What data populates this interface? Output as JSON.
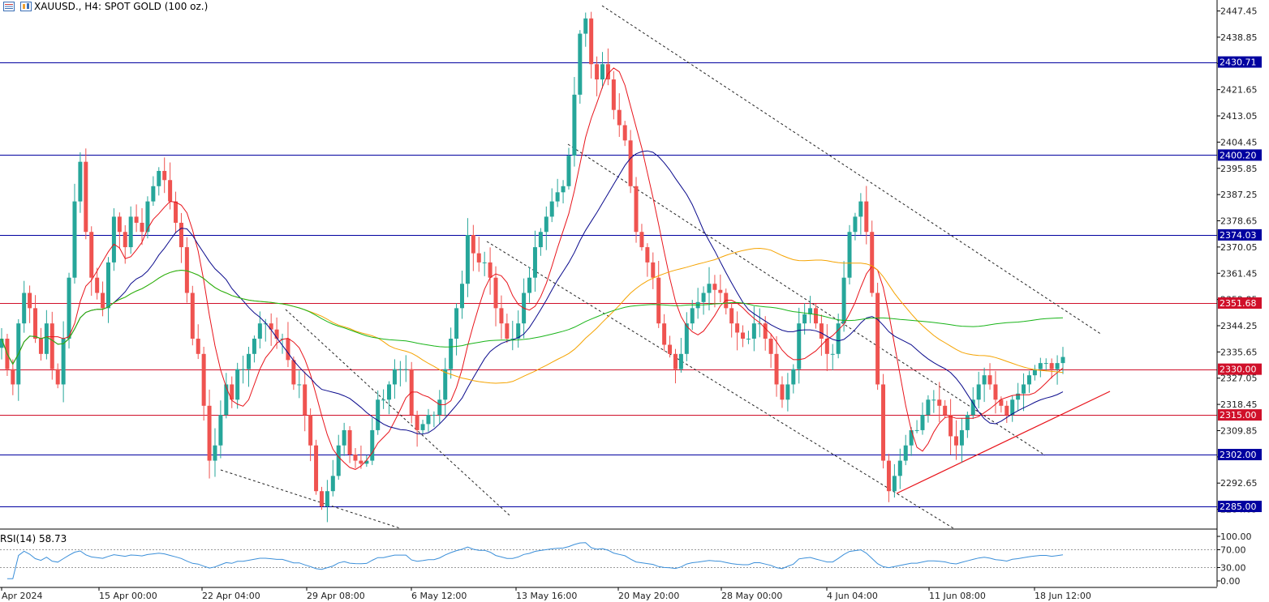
{
  "header": {
    "symbol_text": "XAUUSD., H4:  SPOT GOLD (100 oz.)",
    "icons": [
      "list-icon",
      "chart-type-icon"
    ]
  },
  "colors": {
    "bull": "#26a69a",
    "bear": "#ef5350",
    "ma_red": "#e8141b",
    "ma_navy": "#0a0a8c",
    "ma_orange": "#f5a300",
    "ma_green": "#19b419",
    "level_blue": "#0000a0",
    "level_red": "#d0102a",
    "rsi_line": "#3b8fd9",
    "trend_red": "#e8141b"
  },
  "chart_data": [
    {
      "type": "candlestick",
      "title": "XAUUSD., H4:  SPOT GOLD (100 oz.)",
      "y_range": [
        2280.1,
        2450.0
      ],
      "y_ticks": [
        "2447.45",
        "2438.85",
        "2430.25",
        "2421.65",
        "2413.05",
        "2404.45",
        "2395.85",
        "2387.25",
        "2378.65",
        "2370.05",
        "2361.45",
        "2352.85",
        "2344.25",
        "2335.65",
        "2327.05",
        "2318.45",
        "2309.85",
        "2301.25",
        "2292.65",
        "2284.05"
      ],
      "x_labels": [
        "Apr 2024",
        "15 Apr 00:00",
        "22 Apr 04:00",
        "29 Apr 08:00",
        "6 May 12:00",
        "13 May 16:00",
        "20 May 20:00",
        "28 May 00:00",
        "4 Jun 04:00",
        "11 Jun 08:00",
        "18 Jun 12:00"
      ],
      "price_levels": [
        {
          "label": "2430.71",
          "value": 2430.71,
          "tone": "blue"
        },
        {
          "label": "2400.20",
          "value": 2400.2,
          "tone": "blue"
        },
        {
          "label": "2374.03",
          "value": 2374.03,
          "tone": "blue"
        },
        {
          "label": "2351.68",
          "value": 2351.68,
          "tone": "red"
        },
        {
          "label": "2330.00",
          "value": 2330.0,
          "tone": "red"
        },
        {
          "label": "2315.00",
          "value": 2315.0,
          "tone": "red"
        },
        {
          "label": "2302.00",
          "value": 2302.0,
          "tone": "blue"
        },
        {
          "label": "2285.00",
          "value": 2285.0,
          "tone": "blue"
        }
      ],
      "closes": [
        2340,
        2330,
        2325,
        2345,
        2355,
        2350,
        2340,
        2335,
        2345,
        2330,
        2325,
        2340,
        2360,
        2385,
        2398,
        2375,
        2360,
        2355,
        2350,
        2365,
        2380,
        2375,
        2370,
        2380,
        2378,
        2375,
        2385,
        2390,
        2395,
        2392,
        2385,
        2378,
        2370,
        2355,
        2340,
        2335,
        2318,
        2300,
        2305,
        2315,
        2325,
        2320,
        2330,
        2330,
        2335,
        2340,
        2345,
        2345,
        2343,
        2340,
        2340,
        2333,
        2325,
        2325,
        2315,
        2305,
        2290,
        2285,
        2290,
        2295,
        2305,
        2310,
        2302,
        2300,
        2299,
        2300,
        2310,
        2320,
        2320,
        2325,
        2330,
        2330,
        2330,
        2315,
        2310,
        2312,
        2315,
        2315,
        2320,
        2330,
        2340,
        2350,
        2358,
        2374,
        2368,
        2365,
        2365,
        2360,
        2350,
        2345,
        2340,
        2340,
        2345,
        2355,
        2360,
        2370,
        2375,
        2380,
        2385,
        2388,
        2390,
        2400,
        2420,
        2440,
        2445,
        2430,
        2425,
        2430,
        2425,
        2415,
        2410,
        2405,
        2390,
        2375,
        2370,
        2365,
        2360,
        2345,
        2338,
        2335,
        2330,
        2335,
        2345,
        2350,
        2352,
        2355,
        2358,
        2356,
        2355,
        2350,
        2345,
        2342,
        2340,
        2340,
        2345,
        2345,
        2340,
        2335,
        2325,
        2320,
        2325,
        2330,
        2345,
        2348,
        2350,
        2345,
        2340,
        2335,
        2335,
        2345,
        2360,
        2375,
        2380,
        2385,
        2375,
        2355,
        2325,
        2300,
        2290,
        2295,
        2300,
        2305,
        2310,
        2310,
        2315,
        2320,
        2320,
        2318,
        2315,
        2308,
        2305,
        2310,
        2315,
        2320,
        2325,
        2328,
        2325,
        2320,
        2318,
        2315,
        2320,
        2322,
        2325,
        2328,
        2330,
        2332,
        2332,
        2330,
        2332,
        2334
      ],
      "moving_averages": [
        {
          "color_key": "ma_red",
          "period": 8
        },
        {
          "color_key": "ma_navy",
          "period": 21
        },
        {
          "color_key": "ma_orange",
          "period": 55
        },
        {
          "color_key": "ma_green",
          "period": 120
        }
      ]
    },
    {
      "type": "line",
      "title": "RSI(14) 58.73",
      "y_range": [
        0,
        100
      ],
      "y_ticks": [
        "100.00",
        "70.00",
        "30.00",
        "0.00"
      ],
      "levels": [
        70,
        30
      ]
    }
  ]
}
